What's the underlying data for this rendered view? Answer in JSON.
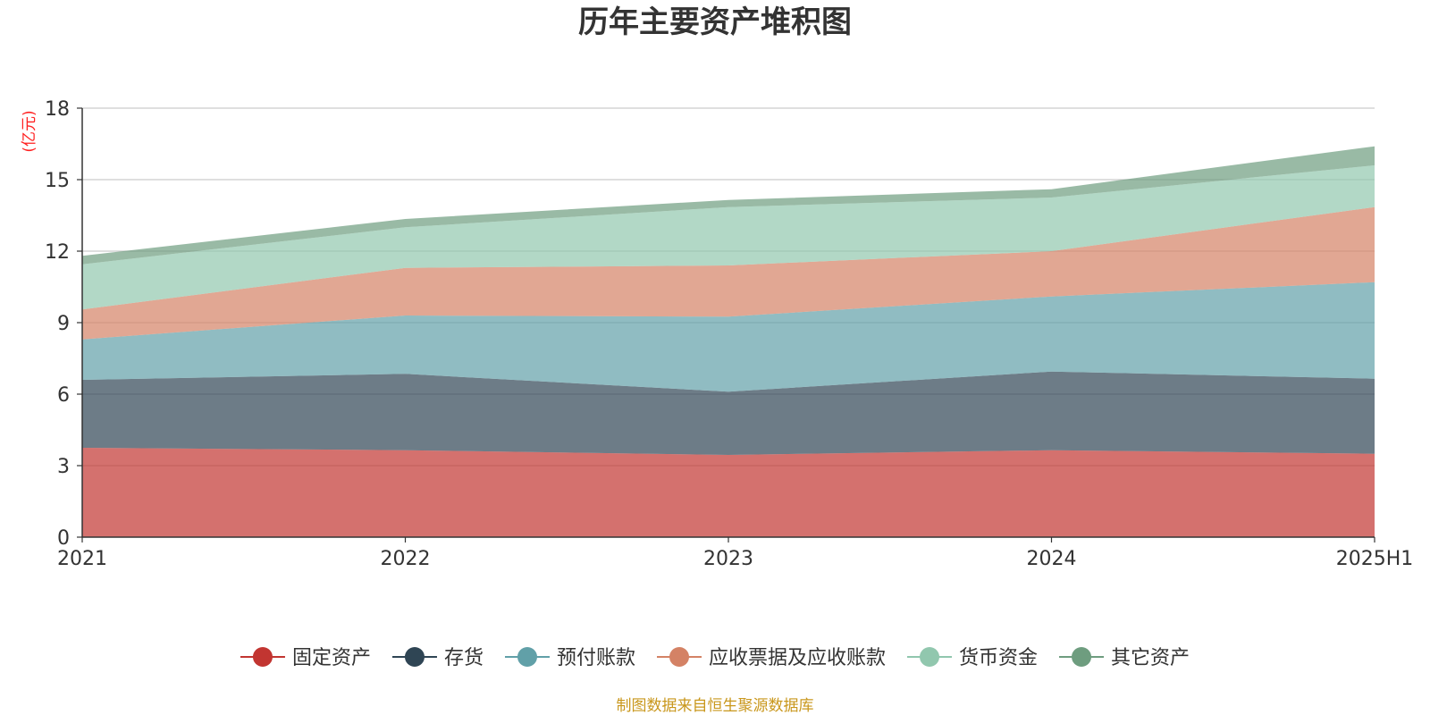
{
  "chart_data": {
    "type": "area",
    "title": "历年主要资产堆积图",
    "ylabel": "(亿元)",
    "xlabel": "",
    "categories": [
      "2021",
      "2022",
      "2023",
      "2024",
      "2025H1"
    ],
    "ylim": [
      0,
      18
    ],
    "yticks": [
      "0",
      "3",
      "6",
      "9",
      "12",
      "15",
      "18"
    ],
    "grid": true,
    "legend_position": "bottom",
    "stacked": true,
    "series": [
      {
        "name": "固定资产",
        "color": "#c23531",
        "values": [
          3.75,
          3.65,
          3.45,
          3.65,
          3.5
        ]
      },
      {
        "name": "存货",
        "color": "#2f4554",
        "values": [
          2.85,
          3.2,
          2.65,
          3.3,
          3.15
        ]
      },
      {
        "name": "预付账款",
        "color": "#61a0a8",
        "values": [
          1.7,
          2.45,
          3.15,
          3.15,
          4.05
        ]
      },
      {
        "name": "应收票据及应收账款",
        "color": "#d48265",
        "values": [
          1.25,
          2.0,
          2.15,
          1.9,
          3.15
        ]
      },
      {
        "name": "货币资金",
        "color": "#91c7ae",
        "values": [
          1.9,
          1.7,
          2.45,
          2.25,
          1.75
        ]
      },
      {
        "name": "其它资产",
        "color": "#6e9d7f",
        "values": [
          0.35,
          0.35,
          0.3,
          0.35,
          0.8
        ]
      }
    ]
  },
  "source": "制图数据来自恒生聚源数据库"
}
